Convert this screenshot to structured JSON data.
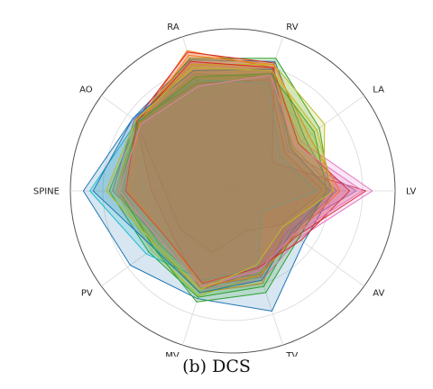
{
  "caption": "(b) DCS",
  "chart_data": {
    "type": "radar",
    "axes": [
      "LV",
      "RA",
      "RV",
      "LA",
      "AO",
      "SPINE",
      "PV",
      "MV",
      "TV",
      "AV"
    ],
    "axis_order_clockwise_from_right": [
      "LV",
      "AV",
      "TV",
      "MV",
      "PV",
      "SPINE",
      "AO",
      "RA",
      "RV",
      "LA"
    ],
    "rlim": [
      0,
      1
    ],
    "rings": [
      0.2,
      0.4,
      0.6,
      0.8,
      1.0
    ],
    "grid": true,
    "fill_opacity": 0.18,
    "series": [
      {
        "color": "#1f77b4",
        "values": {
          "RV": 0.84,
          "LA": 0.55,
          "LV": 0.62,
          "AV": 0.54,
          "TV": 0.78,
          "MV": 0.7,
          "PV": 0.78,
          "SPINE": 0.92,
          "AO": 0.76,
          "RA": 0.85
        }
      },
      {
        "color": "#ff7f0e",
        "values": {
          "RV": 0.8,
          "LA": 0.45,
          "LV": 0.58,
          "AV": 0.4,
          "TV": 0.6,
          "MV": 0.66,
          "PV": 0.58,
          "SPINE": 0.72,
          "AO": 0.72,
          "RA": 0.91
        }
      },
      {
        "color": "#2ca02c",
        "values": {
          "RV": 0.86,
          "LA": 0.66,
          "LV": 0.6,
          "AV": 0.46,
          "TV": 0.62,
          "MV": 0.69,
          "PV": 0.64,
          "SPINE": 0.76,
          "AO": 0.73,
          "RA": 0.86
        }
      },
      {
        "color": "#d62728",
        "values": {
          "RV": 0.83,
          "LA": 0.3,
          "LV": 0.82,
          "AV": 0.48,
          "TV": 0.52,
          "MV": 0.64,
          "PV": 0.46,
          "SPINE": 0.5,
          "AO": 0.74,
          "RA": 0.9
        }
      },
      {
        "color": "#9467bd",
        "values": {
          "RV": 0.78,
          "LA": 0.42,
          "LV": 0.76,
          "AV": 0.42,
          "TV": 0.56,
          "MV": 0.62,
          "PV": 0.54,
          "SPINE": 0.74,
          "AO": 0.75,
          "RA": 0.8
        }
      },
      {
        "color": "#8c564b",
        "values": {
          "RV": 0.72,
          "LA": 0.4,
          "LV": 0.56,
          "AV": 0.36,
          "TV": 0.26,
          "MV": 0.4,
          "PV": 0.4,
          "SPINE": 0.42,
          "AO": 0.74,
          "RA": 0.7
        }
      },
      {
        "color": "#e377c2",
        "values": {
          "RV": 0.76,
          "LA": 0.52,
          "LV": 0.86,
          "AV": 0.5,
          "TV": 0.58,
          "MV": 0.64,
          "PV": 0.52,
          "SPINE": 0.72,
          "AO": 0.7,
          "RA": 0.58
        }
      },
      {
        "color": "#7f7f7f",
        "values": {
          "RV": 0.74,
          "LA": 0.46,
          "LV": 0.64,
          "AV": 0.45,
          "TV": 0.54,
          "MV": 0.6,
          "PV": 0.56,
          "SPINE": 0.68,
          "AO": 0.72,
          "RA": 0.76
        }
      },
      {
        "color": "#bcbd22",
        "values": {
          "RV": 0.82,
          "LA": 0.7,
          "LV": 0.56,
          "AV": 0.4,
          "TV": 0.55,
          "MV": 0.68,
          "PV": 0.62,
          "SPINE": 0.72,
          "AO": 0.74,
          "RA": 0.82
        }
      },
      {
        "color": "#17becf",
        "values": {
          "RV": 0.7,
          "LA": 0.36,
          "LV": 0.52,
          "AV": 0.22,
          "TV": 0.5,
          "MV": 0.58,
          "PV": 0.66,
          "SPINE": 0.88,
          "AO": 0.73,
          "RA": 0.72
        }
      },
      {
        "color": "#1f77b4",
        "values": {
          "RV": 0.79,
          "LA": 0.44,
          "LV": 0.6,
          "AV": 0.44,
          "TV": 0.58,
          "MV": 0.66,
          "PV": 0.6,
          "SPINE": 0.86,
          "AO": 0.76,
          "RA": 0.78
        }
      },
      {
        "color": "#ff7f0e",
        "values": {
          "RV": 0.82,
          "LA": 0.58,
          "LV": 0.66,
          "AV": 0.47,
          "TV": 0.55,
          "MV": 0.62,
          "PV": 0.5,
          "SPINE": 0.64,
          "AO": 0.71,
          "RA": 0.88
        }
      },
      {
        "color": "#2ca02c",
        "values": {
          "RV": 0.76,
          "LA": 0.62,
          "LV": 0.58,
          "AV": 0.5,
          "TV": 0.66,
          "MV": 0.72,
          "PV": 0.6,
          "SPINE": 0.7,
          "AO": 0.72,
          "RA": 0.74
        }
      },
      {
        "color": "#d62728",
        "values": {
          "RV": 0.8,
          "LA": 0.5,
          "LV": 0.72,
          "AV": 0.52,
          "TV": 0.5,
          "MV": 0.6,
          "PV": 0.5,
          "SPINE": 0.66,
          "AO": 0.73,
          "RA": 0.84
        }
      },
      {
        "color": "#e377c2",
        "values": {
          "RV": 0.75,
          "LA": 0.48,
          "LV": 0.8,
          "AV": 0.46,
          "TV": 0.52,
          "MV": 0.62,
          "PV": 0.54,
          "SPINE": 0.7,
          "AO": 0.7,
          "RA": 0.68
        }
      },
      {
        "color": "#bcbd22",
        "values": {
          "RV": 0.78,
          "LA": 0.64,
          "LV": 0.62,
          "AV": 0.38,
          "TV": 0.48,
          "MV": 0.64,
          "PV": 0.58,
          "SPINE": 0.78,
          "AO": 0.74,
          "RA": 0.8
        }
      }
    ]
  }
}
